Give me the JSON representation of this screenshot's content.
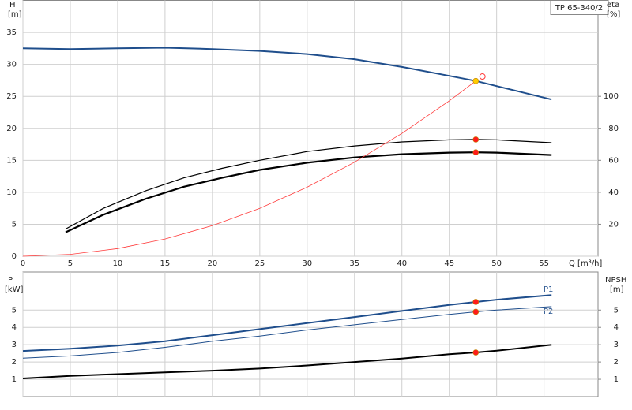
{
  "chart_data": [
    {
      "type": "line",
      "title": "TP 65-340/2",
      "y_label": "H",
      "y_unit": "[m]",
      "y2_label": "eta",
      "y2_unit": "[%]",
      "x_label": "Q [m³/h]",
      "xlim": [
        0,
        60.7
      ],
      "xticks": [
        0,
        5,
        10,
        15,
        20,
        25,
        30,
        35,
        40,
        45,
        50,
        55
      ],
      "ylim": [
        0,
        40
      ],
      "yticks": [
        0,
        5,
        10,
        15,
        20,
        25,
        30,
        35
      ],
      "y2lim": [
        0,
        160
      ],
      "y2ticks": [
        20,
        40,
        60,
        80,
        100
      ],
      "grid": true,
      "series": [
        {
          "color": "#1f4e8c",
          "width": 2,
          "axis": "y",
          "x": [
            0,
            5,
            10,
            15,
            20,
            25,
            30,
            35,
            40,
            45,
            47.8,
            50,
            55.8
          ],
          "values": [
            32.5,
            32.4,
            32.5,
            32.6,
            32.4,
            32.1,
            31.6,
            30.8,
            29.6,
            28.2,
            27.4,
            26.6,
            24.5
          ]
        },
        {
          "color": "#000000",
          "width": 1.2,
          "axis": "y2",
          "x": [
            4.5,
            8.5,
            13,
            17,
            21,
            25,
            30,
            35,
            40,
            45,
            47.8,
            50,
            55.8
          ],
          "values": [
            17,
            30,
            41,
            49,
            55,
            60,
            65.5,
            69,
            71.5,
            72.8,
            73,
            72.8,
            71
          ]
        },
        {
          "color": "#000000",
          "width": 2.2,
          "axis": "y2",
          "x": [
            4.5,
            8.5,
            13,
            17,
            21,
            25,
            30,
            35,
            40,
            45,
            47.8,
            50,
            55.8
          ],
          "values": [
            15,
            26,
            36,
            43.5,
            49,
            54,
            58.5,
            61.8,
            63.8,
            64.8,
            65,
            64.8,
            63.3
          ]
        },
        {
          "color": "#ff3b3b",
          "width": 0.8,
          "axis": "y",
          "x": [
            0,
            5,
            10,
            15,
            20,
            25,
            30,
            35,
            40,
            45,
            47.8
          ],
          "values": [
            0,
            0.3,
            1.2,
            2.7,
            4.8,
            7.5,
            10.8,
            14.7,
            19.2,
            24.3,
            27.4
          ]
        }
      ],
      "markers": [
        {
          "x": 47.8,
          "y": 27.4,
          "axis": "y",
          "color": "#ffcc00"
        },
        {
          "x": 48.5,
          "y": 28.1,
          "axis": "y",
          "color": "#ff3b3b",
          "fill": "none"
        },
        {
          "x": 47.8,
          "y": 73,
          "axis": "y2",
          "color": "#ff1a1a"
        },
        {
          "x": 47.8,
          "y": 65,
          "axis": "y2",
          "color": "#ff1a1a"
        }
      ]
    },
    {
      "type": "line",
      "y_label": "P",
      "y_unit": "[kW]",
      "y2_label": "NPSH",
      "y2_unit": "[m]",
      "xlim": [
        0,
        60.7
      ],
      "ylim": [
        0,
        7.2
      ],
      "yticks": [
        1,
        2,
        3,
        4,
        5
      ],
      "y2lim": [
        0,
        7.2
      ],
      "y2ticks": [
        1,
        2,
        3,
        4,
        5
      ],
      "grid": true,
      "series": [
        {
          "name": "P1",
          "color": "#1f4e8c",
          "width": 2,
          "axis": "y",
          "x": [
            0,
            5,
            10,
            15,
            20,
            25,
            30,
            35,
            40,
            45,
            47.8,
            50,
            55.8
          ],
          "values": [
            2.64,
            2.77,
            2.95,
            3.2,
            3.55,
            3.9,
            4.25,
            4.6,
            4.95,
            5.3,
            5.47,
            5.6,
            5.87
          ]
        },
        {
          "name": "P2",
          "color": "#1f4e8c",
          "width": 1,
          "axis": "y",
          "x": [
            0,
            5,
            10,
            15,
            20,
            25,
            30,
            35,
            40,
            45,
            47.8,
            50,
            55.8
          ],
          "values": [
            2.22,
            2.35,
            2.55,
            2.85,
            3.2,
            3.5,
            3.85,
            4.15,
            4.45,
            4.75,
            4.9,
            5.0,
            5.2
          ]
        },
        {
          "color": "#000000",
          "width": 2,
          "axis": "y2",
          "x": [
            0,
            5,
            10,
            15,
            20,
            25,
            30,
            35,
            40,
            45,
            47.8,
            50,
            55.8
          ],
          "values": [
            1.05,
            1.2,
            1.3,
            1.4,
            1.5,
            1.62,
            1.8,
            2.0,
            2.2,
            2.45,
            2.55,
            2.65,
            3.0
          ]
        }
      ],
      "markers": [
        {
          "x": 47.8,
          "y": 5.47,
          "axis": "y",
          "color": "#ff1a1a"
        },
        {
          "x": 47.8,
          "y": 4.9,
          "axis": "y",
          "color": "#ff1a1a"
        },
        {
          "x": 47.8,
          "y": 2.55,
          "axis": "y2",
          "color": "#ff1a1a"
        }
      ]
    }
  ]
}
